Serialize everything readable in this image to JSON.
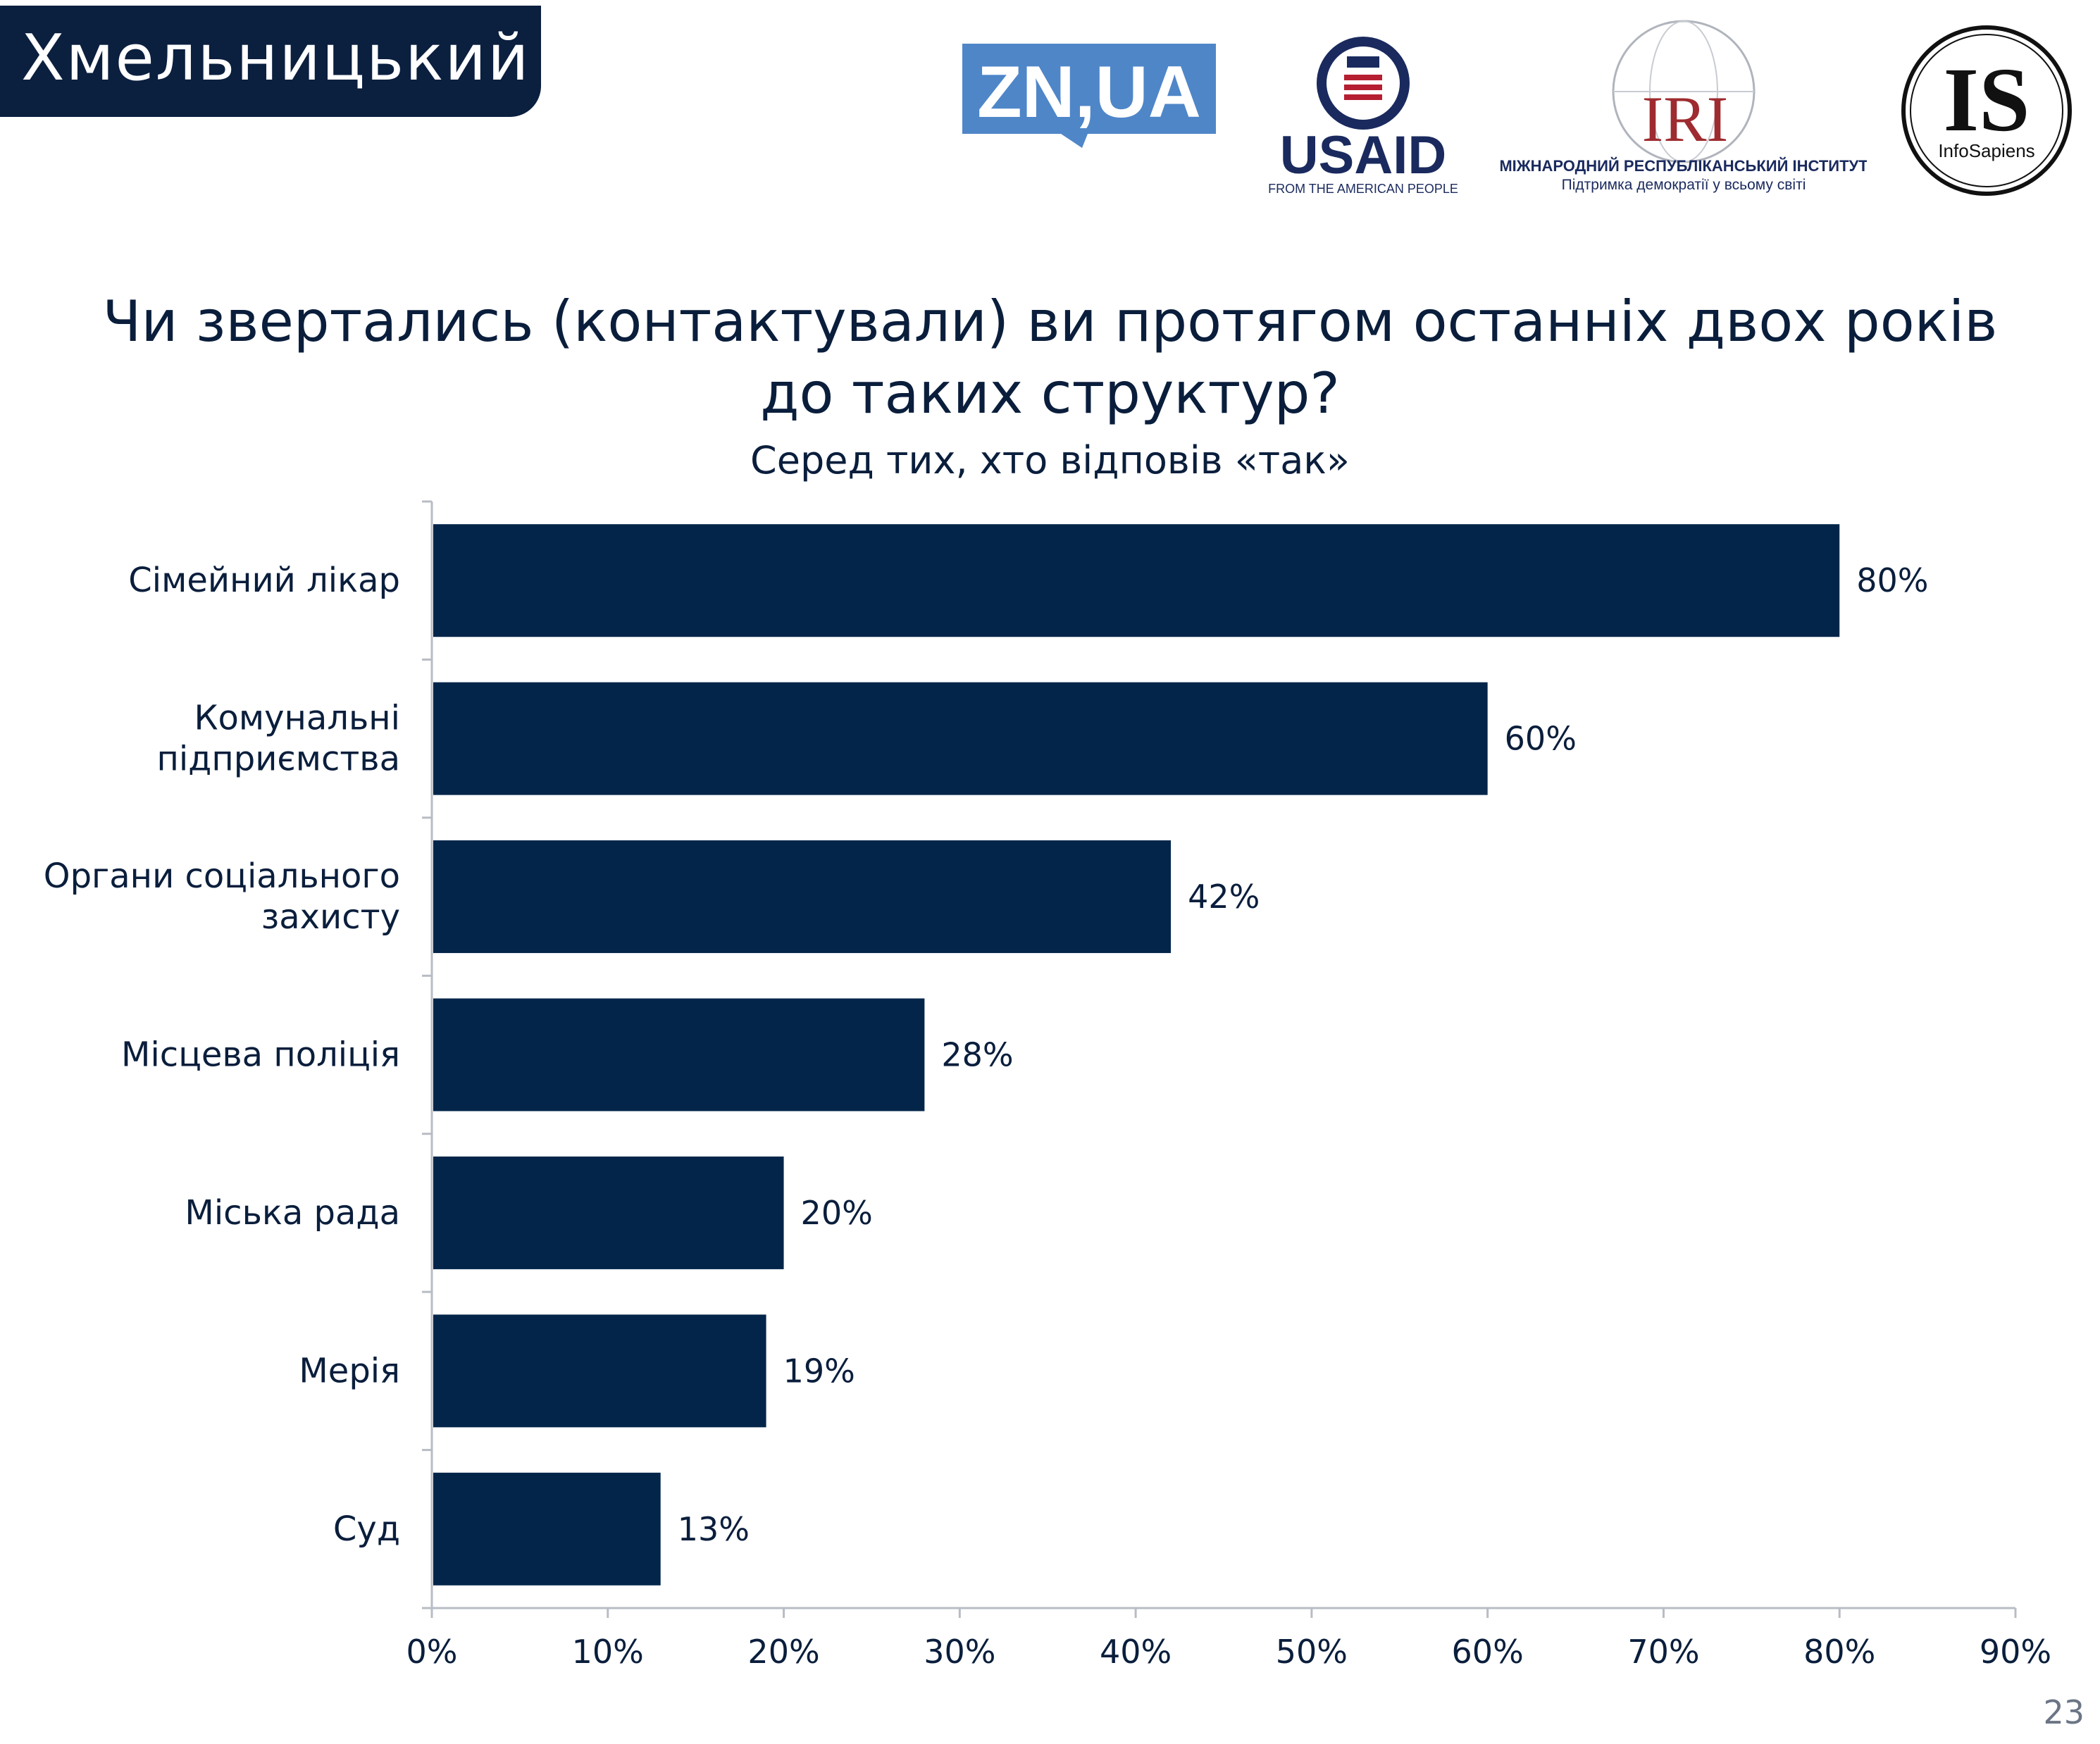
{
  "header": {
    "city": "Хмельницький"
  },
  "logos": {
    "zn": "ZN,UA",
    "usaid_name": "USAID",
    "usaid_tagline": "FROM THE AMERICAN PEOPLE",
    "iri_name": "IRI",
    "iri_line1": "МІЖНАРОДНИЙ РЕСПУБЛІКАНСЬКИЙ ІНСТИТУТ",
    "iri_line2": "Підтримка демократії у всьому світі",
    "is_mark": "IS",
    "is_name": "InfoSapiens"
  },
  "colors": {
    "bar": "#022549",
    "text": "#0a1e3c",
    "banner": "#0b1f3f",
    "zn_blue": "#4f86c8",
    "usaid_navy": "#1a2a5e",
    "usaid_red": "#b51f31",
    "iri_red": "#9e2b2f",
    "axis": "#b8bcc4"
  },
  "page_number": "23",
  "chart_data": {
    "type": "bar",
    "orientation": "horizontal",
    "title_line1": "Чи звертались (контактували) ви протягом останніх двох років",
    "title_line2": "до таких структур?",
    "subtitle": "Серед тих, хто відповів «так»",
    "categories": [
      [
        "Сімейний лікар"
      ],
      [
        "Комунальні",
        "підприємства"
      ],
      [
        "Органи соціального",
        "захисту"
      ],
      [
        "Місцева поліція"
      ],
      [
        "Міська рада"
      ],
      [
        "Мерія"
      ],
      [
        "Суд"
      ]
    ],
    "values": [
      80,
      60,
      42,
      28,
      20,
      19,
      13
    ],
    "value_labels": [
      "80%",
      "60%",
      "42%",
      "28%",
      "20%",
      "19%",
      "13%"
    ],
    "x_ticks": [
      0,
      10,
      20,
      30,
      40,
      50,
      60,
      70,
      80,
      90
    ],
    "x_tick_labels": [
      "0%",
      "10%",
      "20%",
      "30%",
      "40%",
      "50%",
      "60%",
      "70%",
      "80%",
      "90%"
    ],
    "xlim": [
      0,
      90
    ],
    "grid": false,
    "legend": "none"
  }
}
